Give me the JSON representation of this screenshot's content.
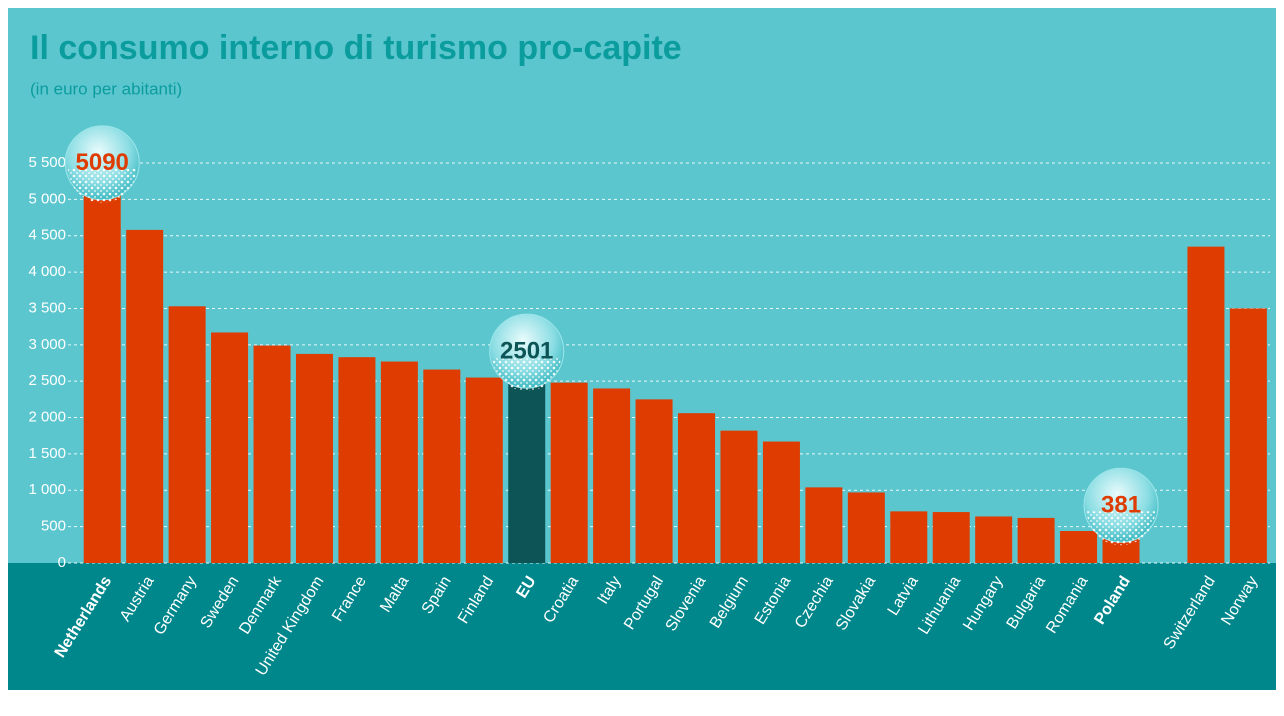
{
  "chart_data": {
    "type": "bar",
    "title": "Il consumo interno di turismo pro-capite",
    "subtitle": "(in euro per abitanti)",
    "categories": [
      "Netherlands",
      "Austria",
      "Germany",
      "Sweden",
      "Denmark",
      "United Kingdom",
      "France",
      "Malta",
      "Spain",
      "Finland",
      "EU",
      "Croatia",
      "Italy",
      "Portugal",
      "Slovenia",
      "Belgium",
      "Estonia",
      "Czechia",
      "Slovakia",
      "Latvia",
      "Lithuania",
      "Hungary",
      "Bulgaria",
      "Romania",
      "Poland",
      null,
      "Switzerland",
      "Norway"
    ],
    "values": [
      5090,
      4580,
      3530,
      3170,
      2990,
      2875,
      2830,
      2770,
      2660,
      2550,
      2501,
      2480,
      2400,
      2250,
      2060,
      1820,
      1670,
      1040,
      970,
      710,
      700,
      640,
      620,
      440,
      381,
      null,
      4350,
      3500
    ],
    "value_labels": [
      "5090",
      null,
      null,
      null,
      null,
      null,
      null,
      null,
      null,
      null,
      "2501",
      null,
      null,
      null,
      null,
      null,
      null,
      null,
      null,
      null,
      null,
      null,
      null,
      null,
      "381",
      null,
      null,
      null
    ],
    "color": "#de3c00",
    "highlight": {
      "category": "EU",
      "color": "#0c5455"
    },
    "ylim": [
      0,
      5500
    ],
    "yticks": [
      0,
      500,
      {
        "value": 1000,
        "label": "1 000"
      },
      {
        "value": 1500,
        "label": "1 500"
      },
      {
        "value": 2000,
        "label": "2 000"
      },
      {
        "value": 2500,
        "label": "2 500"
      },
      {
        "value": 3000,
        "label": "3 000"
      },
      {
        "value": 3500,
        "label": "3 500"
      },
      {
        "value": 4000,
        "label": "4 000"
      },
      {
        "value": 4500,
        "label": "4 500"
      },
      {
        "value": 5000,
        "label": "5 000"
      },
      {
        "value": 5500,
        "label": "5 500"
      }
    ],
    "grid": true
  }
}
